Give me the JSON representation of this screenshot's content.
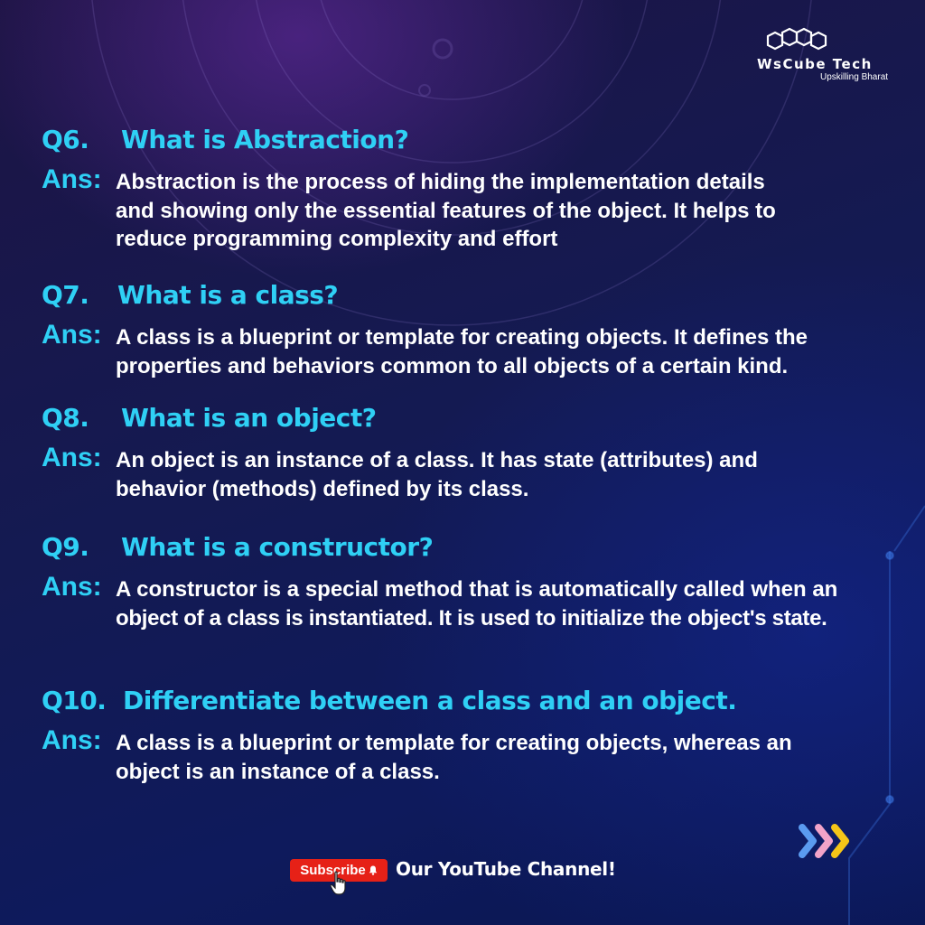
{
  "brand": {
    "name": "WsCube Tech",
    "tagline": "Upskilling Bharat",
    "icon": "hexagon-cluster-logo"
  },
  "questions": [
    {
      "number": "Q6.",
      "question": "What is Abstraction?",
      "answer_label": "Ans:",
      "answer_lines": [
        "Abstraction is the process of hiding the implementation details",
        "and showing only the essential features of the object. It helps to",
        "reduce programming complexity and effort"
      ]
    },
    {
      "number": "Q7.",
      "question": "What is a class?",
      "answer_label": "Ans:",
      "answer_lines": [
        "A class is a blueprint or template for creating objects. It defines the",
        "properties and behaviors common to all objects of a certain kind."
      ]
    },
    {
      "number": "Q8.",
      "question": "What is an object?",
      "answer_label": "Ans:",
      "answer_lines": [
        "An object is an instance of a class. It has state (attributes) and",
        "behavior (methods) defined by its class."
      ]
    },
    {
      "number": "Q9.",
      "question": "What is a constructor?",
      "answer_label": "Ans:",
      "answer_lines": [
        "A constructor is a special method that is automatically called when an",
        "object of a class is instantiated. It is used to initialize the object's state."
      ]
    },
    {
      "number": "Q10.",
      "question": "Differentiate between a class and an object.",
      "answer_label": "Ans:",
      "answer_lines": [
        "A class is a blueprint or template for creating objects, whereas an",
        "object is an instance of a class."
      ]
    }
  ],
  "footer": {
    "subscribe_label": "Subscribe",
    "subscribe_icon": "bell-icon",
    "cursor_icon": "hand-pointer-icon",
    "channel_text": "Our YouTube Channel!",
    "arrows_icon": "triple-chevron-icon"
  },
  "colors": {
    "accent_cyan": "#2fd0f5",
    "subscribe_red": "#e62117",
    "chevron_blue": "#5b9bf0",
    "chevron_pink": "#f2a3c8",
    "chevron_yellow": "#f5c518"
  }
}
